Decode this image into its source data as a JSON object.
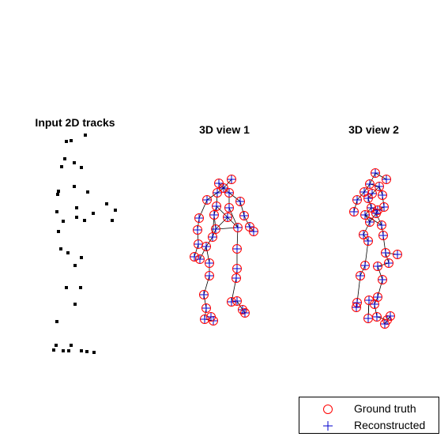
{
  "panels": [
    {
      "title": "Input 2D tracks"
    },
    {
      "title": "3D view 1"
    },
    {
      "title": "3D view 2"
    }
  ],
  "legend": {
    "ground_truth_label": "Ground truth",
    "reconstructed_label": "Reconstructed"
  },
  "colors": {
    "ground_truth": "#ff0000",
    "reconstructed": "#0000cc",
    "track": "#000000",
    "skeleton": "#000000"
  }
}
